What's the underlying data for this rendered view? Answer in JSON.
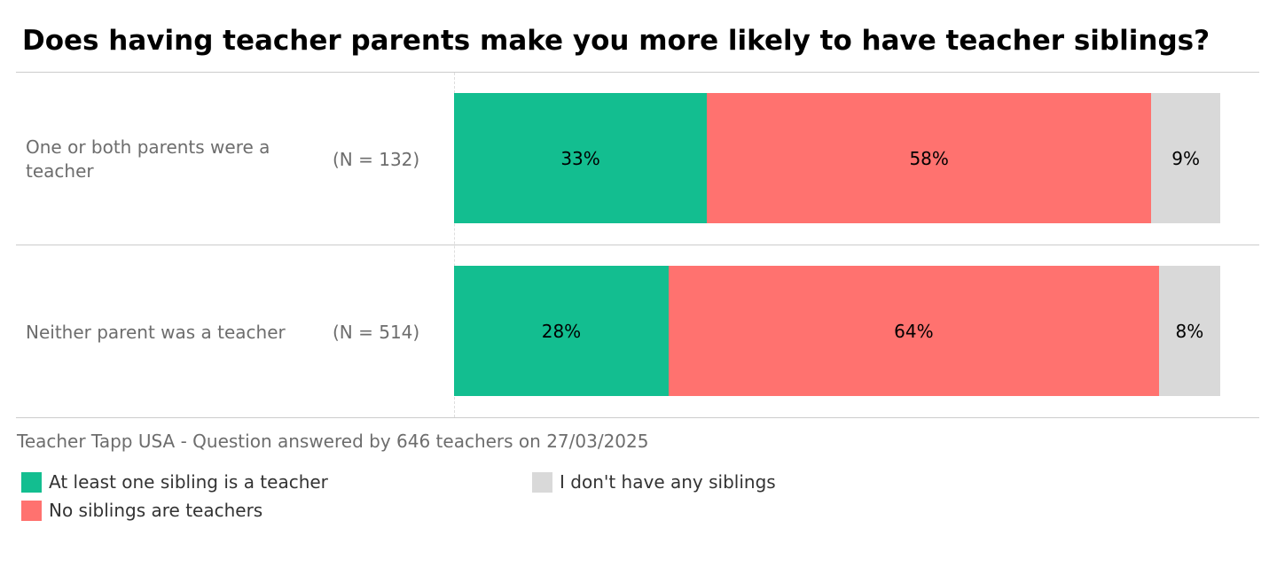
{
  "chart_data": {
    "type": "bar",
    "orientation": "horizontal",
    "stacked": true,
    "title": "Does having teacher parents make you more likely to have teacher siblings?",
    "categories": [
      "One or both parents were a teacher",
      "Neither parent was a teacher"
    ],
    "sample_sizes": [
      "(N = 132)",
      "(N = 514)"
    ],
    "series": [
      {
        "name": "At least one sibling is a teacher",
        "color": "#13be90",
        "values": [
          33,
          28
        ],
        "labels": [
          "33%",
          "28%"
        ]
      },
      {
        "name": "No siblings are teachers",
        "color": "#ff726f",
        "values": [
          58,
          64
        ],
        "labels": [
          "58%",
          "64%"
        ]
      },
      {
        "name": "I don't have any siblings",
        "color": "#d9d9d9",
        "values": [
          9,
          8
        ],
        "labels": [
          "9%",
          "8%"
        ]
      }
    ],
    "xlim": [
      0,
      100
    ],
    "legend_position": "bottom-left",
    "source": "Teacher Tapp USA - Question answered by 646 teachers on 27/03/2025"
  }
}
